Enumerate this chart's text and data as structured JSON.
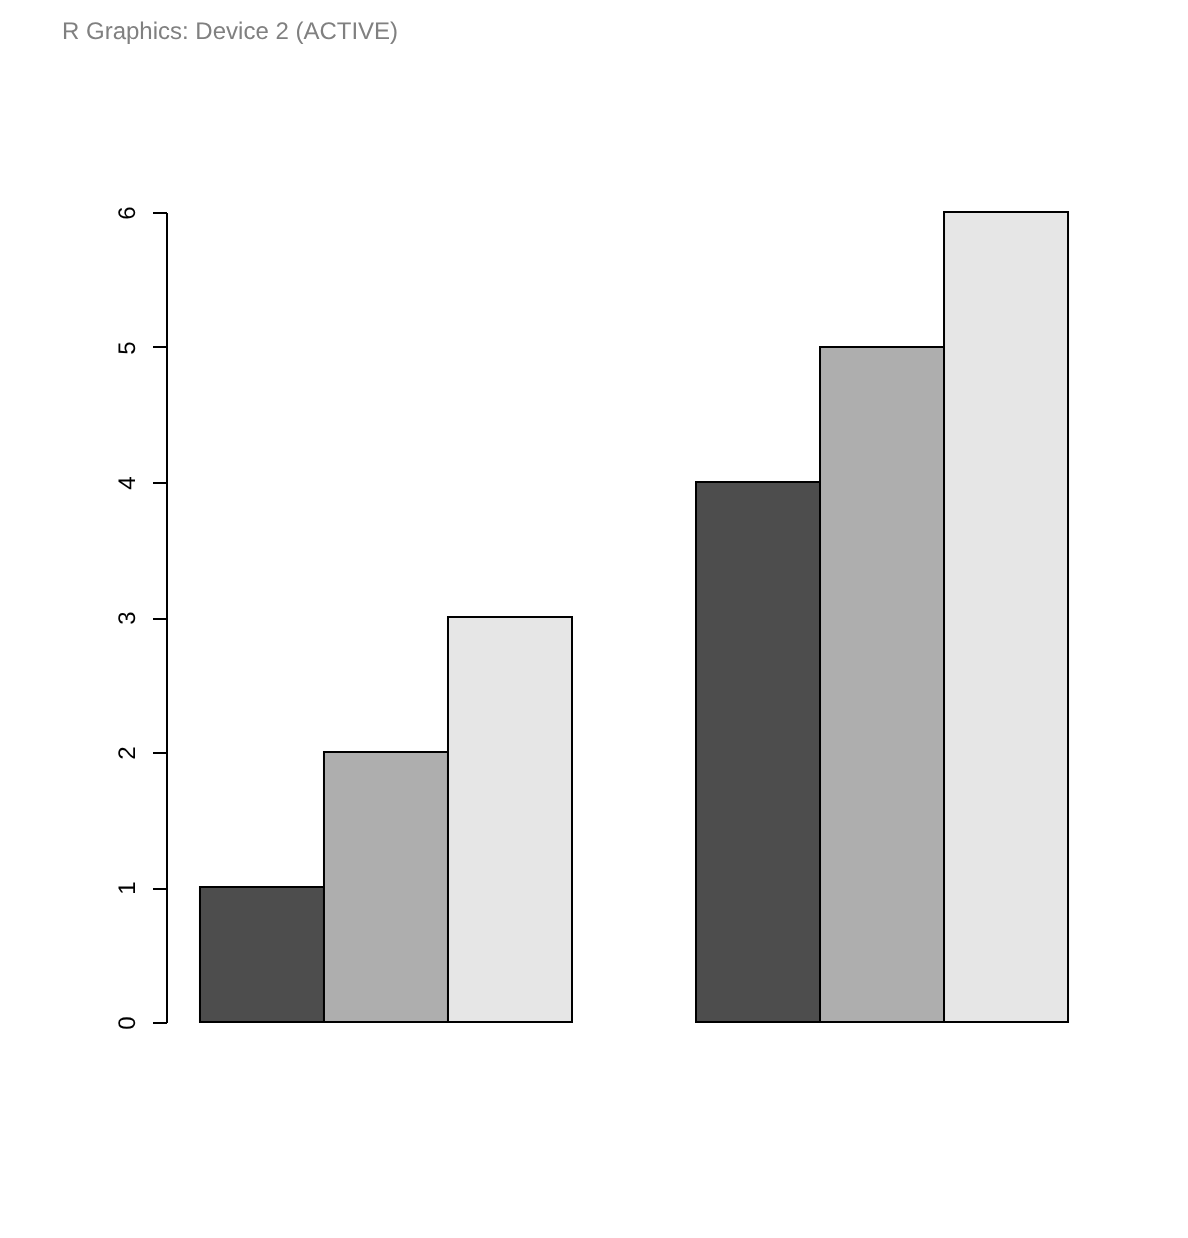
{
  "chart_data": {
    "type": "bar",
    "title": "R Graphics: Device 2 (ACTIVE)",
    "categories": [
      null,
      null
    ],
    "series": [
      {
        "color": "#4d4d4d",
        "values": [
          1,
          4
        ]
      },
      {
        "color": "#aeaeae",
        "values": [
          2,
          5
        ]
      },
      {
        "color": "#e6e6e6",
        "values": [
          3,
          6
        ]
      }
    ],
    "ylim": [
      0,
      6
    ],
    "yticks": [
      0,
      1,
      2,
      3,
      4,
      5,
      6
    ],
    "grid": false,
    "legend": false,
    "tick_labels": "y"
  }
}
